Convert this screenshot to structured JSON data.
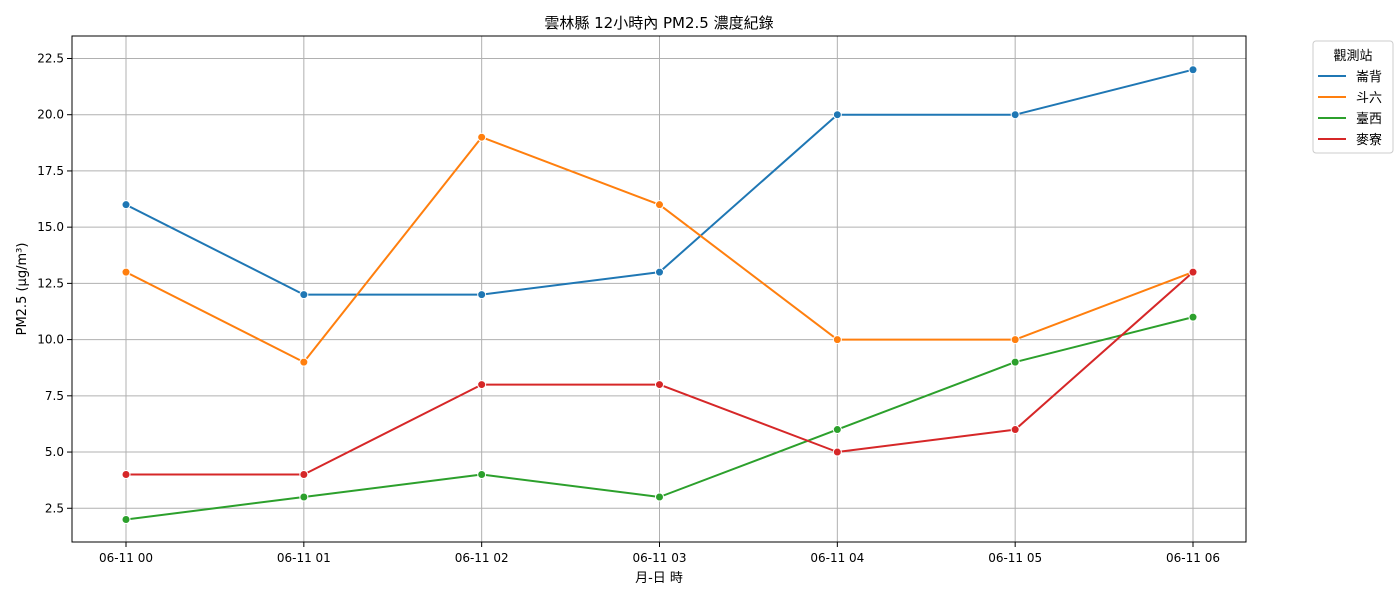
{
  "chart_data": {
    "type": "line",
    "title": "雲林縣 12小時內 PM2.5 濃度紀錄",
    "xlabel": "月-日 時",
    "ylabel": "PM2.5 (µg/m³)",
    "categories": [
      "06-11 00",
      "06-11 01",
      "06-11 02",
      "06-11 03",
      "06-11 04",
      "06-11 05",
      "06-11 06"
    ],
    "y_ticks": [
      "2.5",
      "5.0",
      "7.5",
      "10.0",
      "12.5",
      "15.0",
      "17.5",
      "20.0",
      "22.5"
    ],
    "ylim": [
      1.0,
      23.5
    ],
    "grid": true,
    "legend_title": "觀測站",
    "legend_position": "outside-top-right",
    "markers": true,
    "series": [
      {
        "name": "崙背",
        "color": "#1f77b4",
        "values": [
          16,
          12,
          12,
          13,
          20,
          20,
          22
        ]
      },
      {
        "name": "斗六",
        "color": "#ff7f0e",
        "values": [
          13,
          9,
          19,
          16,
          10,
          10,
          13
        ]
      },
      {
        "name": "臺西",
        "color": "#2ca02c",
        "values": [
          2,
          3,
          4,
          3,
          6,
          9,
          11
        ]
      },
      {
        "name": "麥寮",
        "color": "#d62728",
        "values": [
          4,
          4,
          8,
          8,
          5,
          6,
          13
        ]
      }
    ]
  }
}
